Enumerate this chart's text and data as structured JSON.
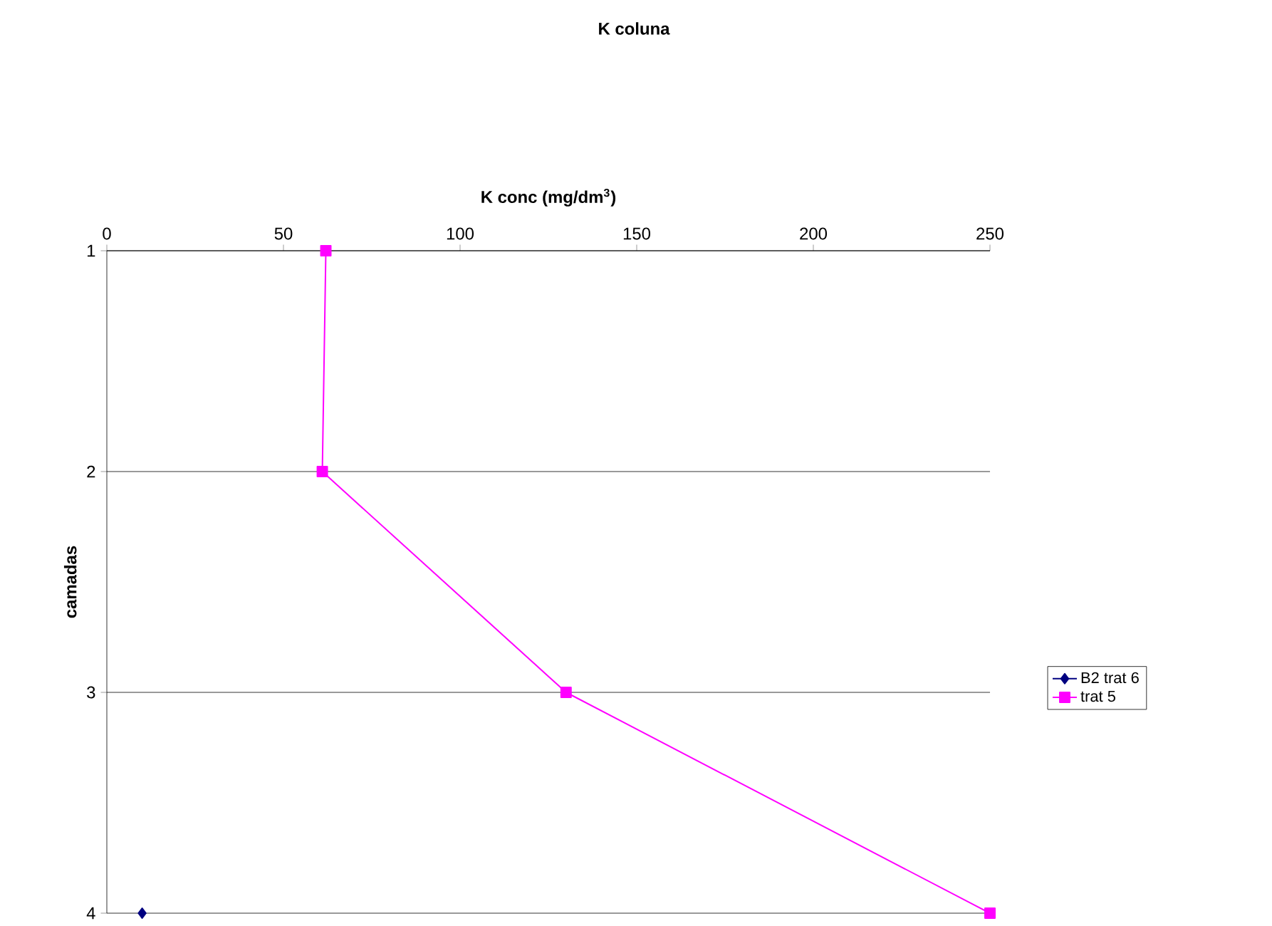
{
  "chart_data": {
    "type": "line",
    "title": "K coluna",
    "xlabel": "K conc (mg/dm$^{3}$)",
    "ylabel": "camadas",
    "xlim": [
      0,
      250
    ],
    "xticks": [
      0,
      50,
      100,
      150,
      200,
      250
    ],
    "ylim": [
      4,
      1
    ],
    "yticks": [
      1,
      2,
      3,
      4
    ],
    "grid": "y",
    "legend": "right",
    "line_style": "solid",
    "series": [
      {
        "name": "B2 trat 6",
        "color": "#000080",
        "marker": "diamond",
        "x": [
          10
        ],
        "values": [
          4
        ]
      },
      {
        "name": "trat 5",
        "color": "#ff00ff",
        "marker": "square",
        "x": [
          62,
          61,
          130,
          250
        ],
        "values": [
          1,
          2,
          3,
          4
        ]
      }
    ]
  }
}
